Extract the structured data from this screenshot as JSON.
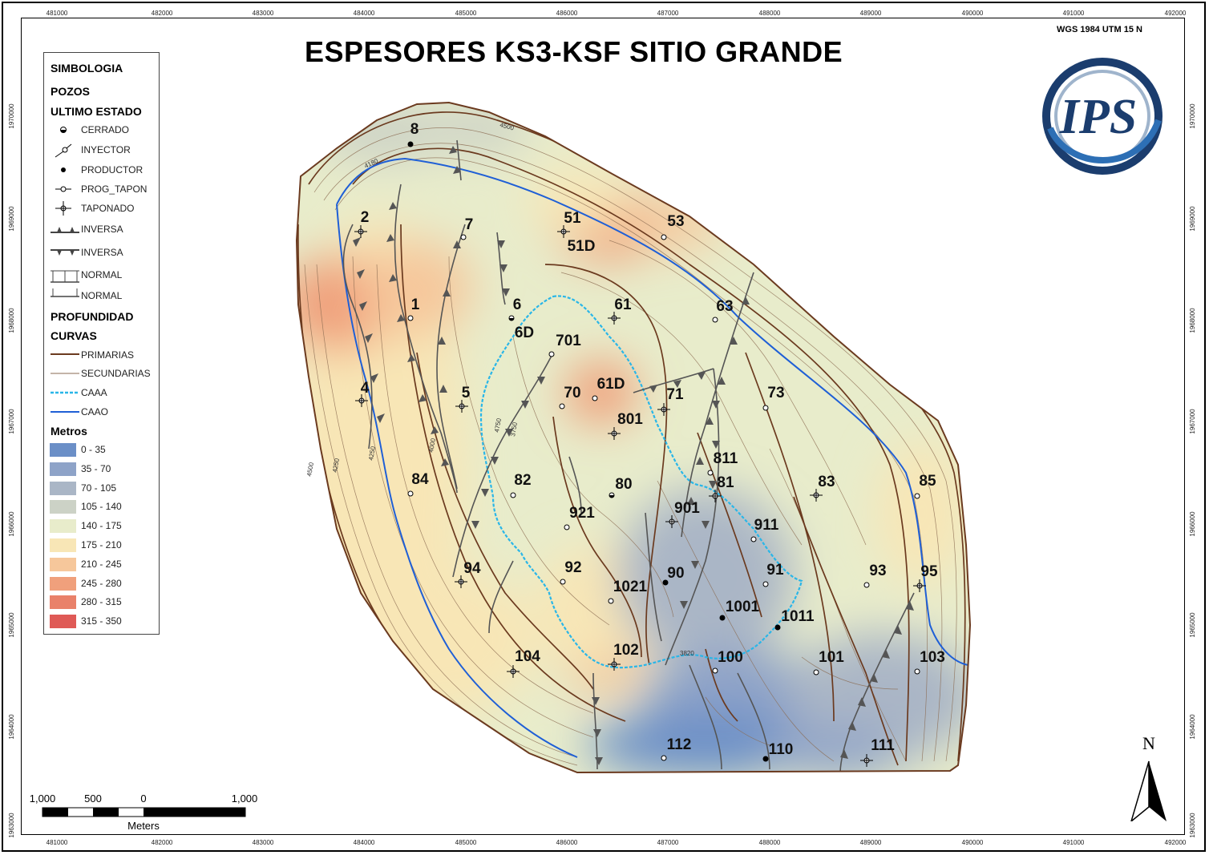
{
  "title": "ESPESORES KS3-KSF SITIO GRANDE",
  "projection": "WGS 1984 UTM 15 N",
  "x_ticks": [
    "481000",
    "482000",
    "483000",
    "484000",
    "485000",
    "486000",
    "487000",
    "488000",
    "489000",
    "490000",
    "491000",
    "492000"
  ],
  "y_ticks": [
    "1970000",
    "1969000",
    "1968000",
    "1967000",
    "1966000",
    "1965000",
    "1964000",
    "1963000"
  ],
  "legend": {
    "title": "SIMBOLOGIA",
    "wells_header": "POZOS",
    "status_header": "ULTIMO ESTADO",
    "status_items": [
      {
        "label": "CERRADO",
        "icon": "closed-well-icon"
      },
      {
        "label": "INYECTOR",
        "icon": "injector-well-icon"
      },
      {
        "label": "PRODUCTOR",
        "icon": "producer-well-icon"
      },
      {
        "label": "PROG_TAPON",
        "icon": "prog-plug-well-icon"
      },
      {
        "label": "TAPONADO",
        "icon": "plugged-well-icon"
      }
    ],
    "fault_items": [
      {
        "label": "INVERSA",
        "icon": "reverse-fault-up-icon"
      },
      {
        "label": "INVERSA",
        "icon": "reverse-fault-down-icon"
      },
      {
        "label": "NORMAL",
        "icon": "normal-fault-up-icon"
      },
      {
        "label": "NORMAL",
        "icon": "normal-fault-down-icon"
      }
    ],
    "depth_header": "PROFUNDIDAD",
    "curves_header": "CURVAS",
    "curve_items": [
      {
        "label": "PRIMARIAS",
        "color": "#6b3a1f"
      },
      {
        "label": "SECUNDARIAS",
        "color": "#8a6a50"
      },
      {
        "label": "CAAA",
        "color": "#29b6e8"
      },
      {
        "label": "CAAO",
        "color": "#1f5fd6"
      }
    ],
    "metros_header": "Metros",
    "classes": [
      {
        "label": "0 - 35",
        "color": "#6b8fc7"
      },
      {
        "label": "35 - 70",
        "color": "#8ea3c8"
      },
      {
        "label": "70 - 105",
        "color": "#aab6c6"
      },
      {
        "label": "105 - 140",
        "color": "#ccd2c6"
      },
      {
        "label": "140 - 175",
        "color": "#e8eccb"
      },
      {
        "label": "175 - 210",
        "color": "#f8e6b6"
      },
      {
        "label": "210 - 245",
        "color": "#f6c79b"
      },
      {
        "label": "245 - 280",
        "color": "#f0a07c"
      },
      {
        "label": "280 - 315",
        "color": "#e9816a"
      },
      {
        "label": "315 - 350",
        "color": "#df5a56"
      }
    ]
  },
  "wells": [
    "8",
    "2",
    "7",
    "51",
    "51D",
    "53",
    "1",
    "6",
    "6D",
    "61",
    "63",
    "701",
    "4",
    "5",
    "70",
    "61D",
    "71",
    "73",
    "801",
    "811",
    "81",
    "83",
    "85",
    "84",
    "82",
    "80",
    "921",
    "901",
    "911",
    "94",
    "92",
    "1021",
    "90",
    "91",
    "93",
    "95",
    "1001",
    "1011",
    "104",
    "102",
    "100",
    "101",
    "103",
    "112",
    "110",
    "111"
  ],
  "contour_labels": [
    "4500",
    "4180",
    "3750",
    "4000",
    "4250",
    "4250",
    "4500",
    "4750",
    "3820"
  ],
  "scale_bar": {
    "labels": [
      "1,000",
      "500",
      "0",
      "1,000"
    ],
    "unit": "Meters"
  },
  "north_label": "N",
  "logo_text": "IPS"
}
